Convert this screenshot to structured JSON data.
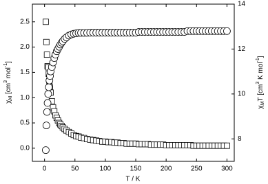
{
  "chart_data": {
    "type": "scatter",
    "x": [
      2,
      3,
      4,
      5,
      6,
      7,
      8,
      9,
      10,
      12,
      14,
      16,
      18,
      20,
      22,
      24,
      26,
      28,
      30,
      33,
      36,
      40,
      44,
      48,
      52,
      56,
      60,
      65,
      70,
      75,
      80,
      85,
      90,
      95,
      100,
      105,
      110,
      115,
      120,
      125,
      130,
      135,
      140,
      145,
      150,
      155,
      160,
      165,
      170,
      175,
      180,
      185,
      190,
      195,
      200,
      205,
      210,
      215,
      220,
      225,
      230,
      235,
      240,
      245,
      250,
      255,
      260,
      265,
      270,
      275,
      280,
      285,
      290,
      295,
      300
    ],
    "series": [
      {
        "marker": "square",
        "color": "#000000",
        "axis": "y",
        "values": [
          2.5,
          2.1,
          1.85,
          1.62,
          1.6,
          1.47,
          1.33,
          1.2,
          1.1,
          0.93,
          0.81,
          0.73,
          0.65,
          0.6,
          0.55,
          0.5,
          0.47,
          0.44,
          0.41,
          0.38,
          0.35,
          0.32,
          0.29,
          0.26,
          0.24,
          0.23,
          0.21,
          0.2,
          0.18,
          0.17,
          0.16,
          0.15,
          0.14,
          0.13,
          0.13,
          0.12,
          0.12,
          0.11,
          0.11,
          0.1,
          0.1,
          0.09,
          0.09,
          0.09,
          0.09,
          0.08,
          0.08,
          0.08,
          0.08,
          0.07,
          0.07,
          0.07,
          0.07,
          0.07,
          0.06,
          0.06,
          0.06,
          0.06,
          0.06,
          0.06,
          0.06,
          0.06,
          0.06,
          0.05,
          0.05,
          0.05,
          0.05,
          0.05,
          0.05,
          0.05,
          0.05,
          0.05,
          0.05,
          0.05,
          0.05
        ]
      },
      {
        "marker": "circle",
        "color": "#000000",
        "axis": "y2",
        "values": [
          7.5,
          8.6,
          9.2,
          9.6,
          10.0,
          10.3,
          10.6,
          10.8,
          11.0,
          11.2,
          11.4,
          11.6,
          11.75,
          11.9,
          12.0,
          12.1,
          12.2,
          12.28,
          12.35,
          12.45,
          12.52,
          12.6,
          12.65,
          12.68,
          12.7,
          12.72,
          12.72,
          12.72,
          12.72,
          12.73,
          12.73,
          12.73,
          12.73,
          12.73,
          12.73,
          12.73,
          12.73,
          12.73,
          12.73,
          12.73,
          12.73,
          12.73,
          12.73,
          12.73,
          12.73,
          12.76,
          12.76,
          12.76,
          12.76,
          12.76,
          12.76,
          12.76,
          12.76,
          12.76,
          12.76,
          12.76,
          12.76,
          12.76,
          12.76,
          12.76,
          12.76,
          12.8,
          12.8,
          12.8,
          12.8,
          12.8,
          12.8,
          12.8,
          12.8,
          12.8,
          12.8,
          12.8,
          12.8,
          12.8,
          12.8
        ]
      }
    ],
    "xlim": [
      -20,
      312
    ],
    "xticks": [
      0,
      50,
      100,
      150,
      200,
      250,
      300
    ],
    "ylim": [
      -0.26,
      2.85
    ],
    "yticks": [
      {
        "value": 0,
        "label": "0.0"
      },
      0.5,
      {
        "value": 1,
        "label": "1.0"
      },
      1.5,
      {
        "value": 2,
        "label": "2.0"
      },
      2.5
    ],
    "y2lim": [
      7,
      14
    ],
    "y2ticks": [
      8,
      10,
      12,
      14
    ],
    "x_label": "T / K",
    "y_label": [
      {
        "text": "χ"
      },
      {
        "text": "M",
        "sub": true
      },
      {
        "text": " [cm"
      },
      {
        "text": "3",
        "sup": true
      },
      {
        "text": " mol"
      },
      {
        "text": "-1",
        "sup": true
      },
      {
        "text": "]"
      }
    ],
    "y2_label": [
      {
        "text": "χ"
      },
      {
        "text": "M",
        "sub": true
      },
      {
        "text": "T [cm"
      },
      {
        "text": "3",
        "sup": true
      },
      {
        "text": " K mol"
      },
      {
        "text": "-1",
        "sup": true
      },
      {
        "text": "]"
      }
    ]
  }
}
